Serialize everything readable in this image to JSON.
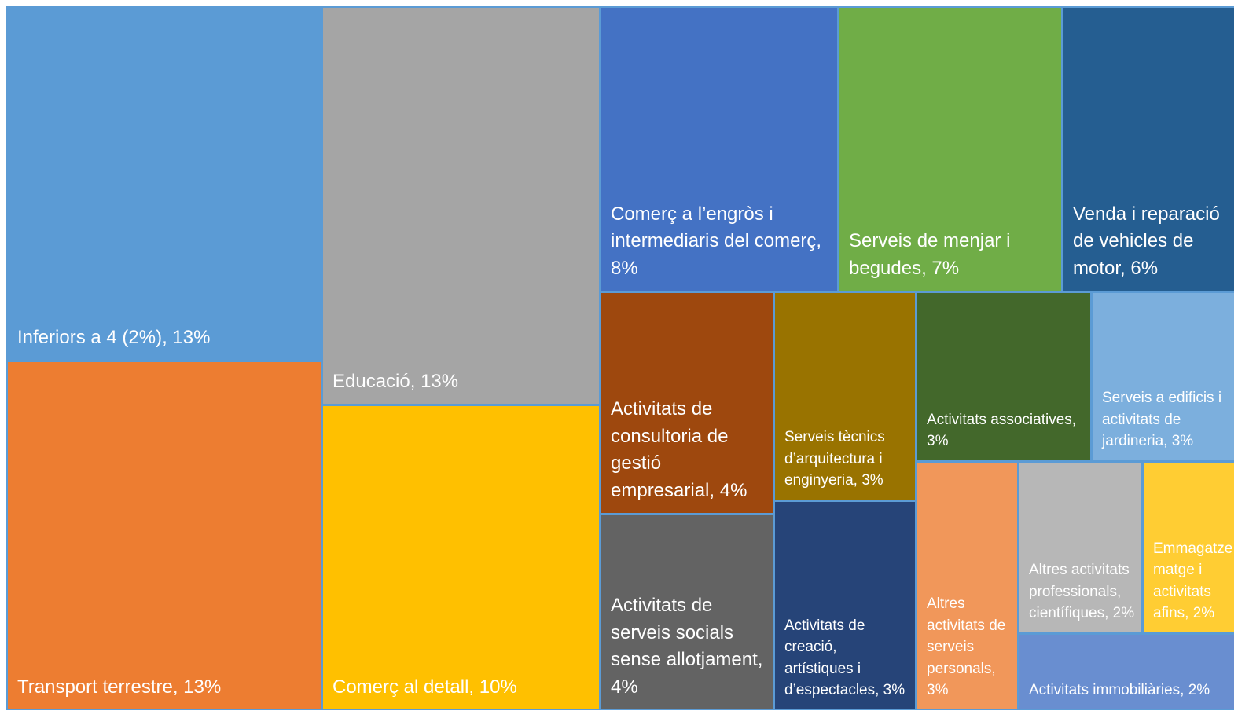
{
  "chart_data": {
    "type": "treemap",
    "categories": [
      "Inferiors a 4 (2%)",
      "Transport terrestre",
      "Educació",
      "Comerç al detall",
      "Comerç a l’engròs i intermediaris del comerç",
      "Serveis de menjar i begudes",
      "Venda i reparació de vehicles de motor",
      "Activitats de consultoria de gestió empresarial",
      "Activitats de serveis socials sense allotjament",
      "Serveis tècnics d’arquitectura i enginyeria",
      "Activitats de creació, artístiques i d’espectacles",
      "Activitats associatives",
      "Serveis a edificis i activitats de jardineria",
      "Altres activitats de serveis personals",
      "Altres activitats professionals, científiques",
      "Emmagatzematge i activitats afins",
      "Activitats immobiliàries"
    ],
    "values": [
      13,
      13,
      13,
      10,
      8,
      7,
      6,
      4,
      4,
      3,
      3,
      3,
      3,
      3,
      2,
      2,
      2
    ],
    "value_labels": [
      ", 13%",
      ", 13%",
      ", 13%",
      ", 10%",
      ", 8%",
      ", 7%",
      ", 6%",
      ", 4%",
      ", 4%",
      ", 3%",
      ", 3%",
      ", 3%",
      ", 3%",
      ", 3%",
      ", 2%",
      ", 2%",
      ", 2%"
    ],
    "colors": [
      "#5b9bd5",
      "#ed7d31",
      "#a5a5a5",
      "#ffc000",
      "#4472c4",
      "#70ad47",
      "#255e91",
      "#9e480e",
      "#636363",
      "#997300",
      "#264478",
      "#43682b",
      "#7cafdd",
      "#f1975a",
      "#b7b7b7",
      "#ffcd33",
      "#698ed0"
    ]
  }
}
